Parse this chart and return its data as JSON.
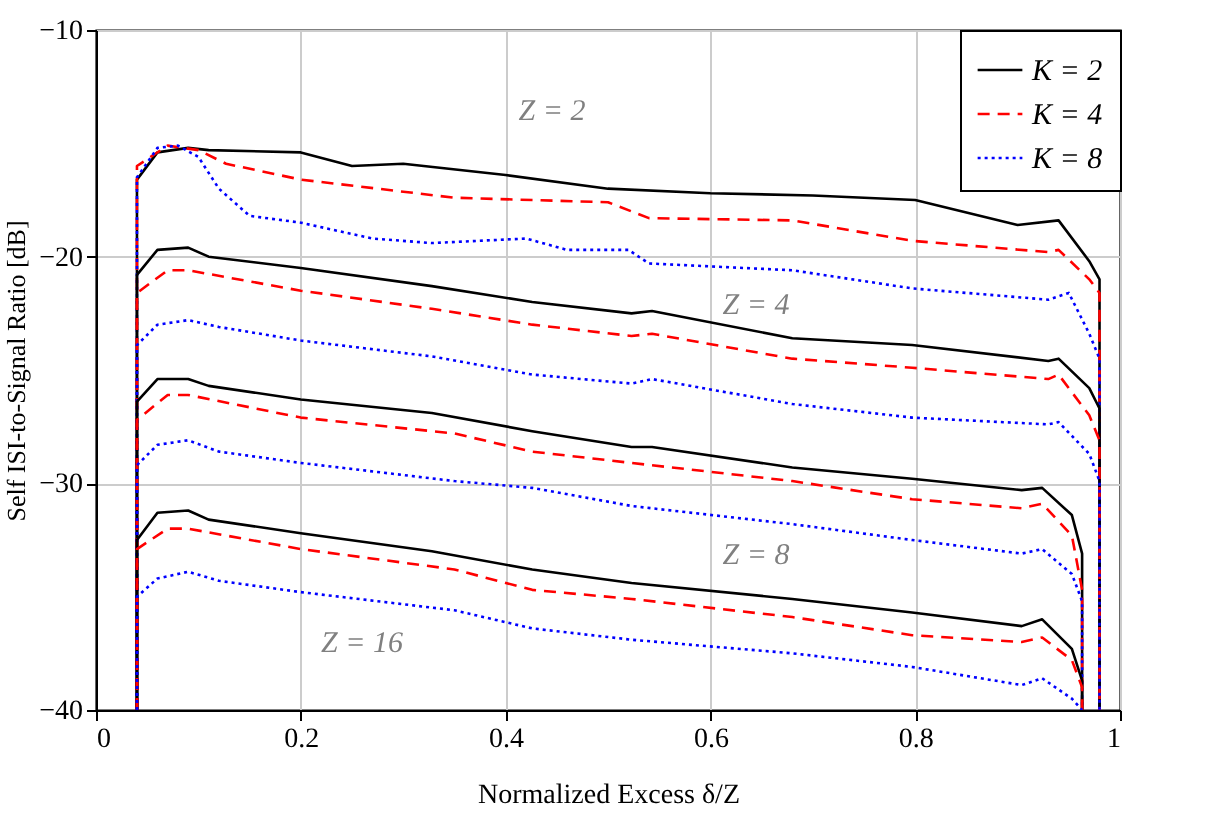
{
  "chart_data": {
    "type": "line",
    "xlabel": "Normalized Excess δ/Z",
    "ylabel": "Self ISI-to-Signal Ratio [dB]",
    "xlim": [
      0,
      1
    ],
    "ylim": [
      -40,
      -10
    ],
    "xticks": [
      0,
      0.2,
      0.4,
      0.6,
      0.8,
      1
    ],
    "yticks": [
      -40,
      -30,
      -20,
      -10
    ],
    "grid": true,
    "legend": "top right",
    "marker": "none",
    "series": [
      {
        "name": "K = 2",
        "color": "#000000",
        "line_style": "solid",
        "x": [
          0.04,
          0.04,
          0.06,
          0.09,
          0.11,
          0.2,
          0.25,
          0.3,
          0.4,
          0.5,
          0.6,
          0.7,
          0.8,
          0.9,
          0.94,
          0.97,
          0.98,
          0.98
        ],
        "values": [
          -40,
          -16.6,
          -15.4,
          -15.2,
          -15.3,
          -15.4,
          -16.0,
          -15.9,
          -16.4,
          -17.0,
          -17.2,
          -17.3,
          -17.5,
          -18.6,
          -18.4,
          -20.2,
          -21.0,
          -40
        ]
      },
      {
        "name": "K = 4",
        "color": "#ff0000",
        "line_style": "dashed",
        "x": [
          0.04,
          0.04,
          0.07,
          0.1,
          0.127,
          0.2,
          0.35,
          0.5,
          0.54,
          0.68,
          0.797,
          0.93,
          0.94,
          0.97,
          0.98,
          0.98
        ],
        "values": [
          -40,
          -16.0,
          -15.1,
          -15.3,
          -15.9,
          -16.6,
          -17.4,
          -17.6,
          -18.3,
          -18.4,
          -19.3,
          -19.8,
          -19.7,
          -21.0,
          -21.6,
          -40
        ]
      },
      {
        "name": "K = 8",
        "color": "#0000ff",
        "line_style": "dotted",
        "x": [
          0.04,
          0.04,
          0.06,
          0.08,
          0.1,
          0.12,
          0.15,
          0.2,
          0.27,
          0.328,
          0.42,
          0.46,
          0.52,
          0.54,
          0.68,
          0.797,
          0.93,
          0.95,
          0.97,
          0.98,
          0.98
        ],
        "values": [
          -40,
          -16.5,
          -15.2,
          -15.1,
          -15.6,
          -17.0,
          -18.2,
          -18.5,
          -19.2,
          -19.4,
          -19.2,
          -19.7,
          -19.7,
          -20.3,
          -20.6,
          -21.4,
          -21.9,
          -21.6,
          -23.4,
          -24.5,
          -40
        ]
      },
      {
        "color": "#000000",
        "line_style": "solid",
        "x": [
          0.04,
          0.04,
          0.06,
          0.09,
          0.11,
          0.2,
          0.328,
          0.426,
          0.523,
          0.543,
          0.68,
          0.797,
          0.93,
          0.94,
          0.97,
          0.98,
          0.98
        ],
        "values": [
          -40,
          -20.8,
          -19.7,
          -19.6,
          -20.0,
          -20.5,
          -21.3,
          -22.0,
          -22.5,
          -22.4,
          -23.6,
          -23.9,
          -24.6,
          -24.5,
          -25.8,
          -26.7,
          -40
        ]
      },
      {
        "color": "#ff0000",
        "line_style": "dashed",
        "x": [
          0.04,
          0.04,
          0.07,
          0.09,
          0.2,
          0.328,
          0.426,
          0.523,
          0.543,
          0.68,
          0.797,
          0.93,
          0.94,
          0.97,
          0.98,
          0.98
        ],
        "values": [
          -40,
          -21.6,
          -20.6,
          -20.6,
          -21.5,
          -22.3,
          -23.0,
          -23.5,
          -23.4,
          -24.5,
          -24.9,
          -25.4,
          -25.2,
          -27.0,
          -28.1,
          -40
        ]
      },
      {
        "color": "#0000ff",
        "line_style": "dotted",
        "x": [
          0.04,
          0.04,
          0.06,
          0.09,
          0.12,
          0.2,
          0.328,
          0.426,
          0.523,
          0.543,
          0.68,
          0.797,
          0.93,
          0.94,
          0.97,
          0.98,
          0.98
        ],
        "values": [
          -40,
          -23.9,
          -23.0,
          -22.8,
          -23.1,
          -23.7,
          -24.4,
          -25.2,
          -25.6,
          -25.4,
          -26.5,
          -27.1,
          -27.4,
          -27.3,
          -28.7,
          -29.9,
          -40
        ]
      },
      {
        "color": "#000000",
        "line_style": "solid",
        "x": [
          0.04,
          0.04,
          0.06,
          0.09,
          0.11,
          0.2,
          0.328,
          0.426,
          0.523,
          0.543,
          0.68,
          0.797,
          0.904,
          0.924,
          0.953,
          0.963,
          0.963
        ],
        "values": [
          -40,
          -26.4,
          -25.4,
          -25.4,
          -25.7,
          -26.3,
          -26.9,
          -27.7,
          -28.4,
          -28.4,
          -29.3,
          -29.8,
          -30.3,
          -30.2,
          -31.4,
          -33.1,
          -40
        ]
      },
      {
        "color": "#ff0000",
        "line_style": "dashed",
        "x": [
          0.04,
          0.04,
          0.07,
          0.09,
          0.2,
          0.35,
          0.426,
          0.523,
          0.68,
          0.797,
          0.904,
          0.924,
          0.953,
          0.963,
          0.963
        ],
        "values": [
          -40,
          -27.2,
          -26.1,
          -26.1,
          -27.1,
          -27.8,
          -28.6,
          -29.1,
          -29.9,
          -30.7,
          -31.1,
          -30.9,
          -32.3,
          -34.7,
          -40
        ]
      },
      {
        "color": "#0000ff",
        "line_style": "dotted",
        "x": [
          0.04,
          0.04,
          0.06,
          0.09,
          0.12,
          0.2,
          0.35,
          0.426,
          0.523,
          0.68,
          0.797,
          0.904,
          0.924,
          0.953,
          0.963,
          0.963
        ],
        "values": [
          -40,
          -29.2,
          -28.3,
          -28.1,
          -28.6,
          -29.1,
          -29.9,
          -30.2,
          -31.0,
          -31.8,
          -32.5,
          -33.1,
          -32.9,
          -34.0,
          -35.2,
          -40
        ]
      },
      {
        "color": "#000000",
        "line_style": "solid",
        "x": [
          0.04,
          0.04,
          0.06,
          0.09,
          0.11,
          0.2,
          0.328,
          0.426,
          0.523,
          0.68,
          0.797,
          0.904,
          0.924,
          0.953,
          0.963,
          0.963
        ],
        "values": [
          -40,
          -32.5,
          -31.3,
          -31.2,
          -31.6,
          -32.2,
          -33.0,
          -33.8,
          -34.4,
          -35.1,
          -35.7,
          -36.3,
          -36.0,
          -37.3,
          -38.7,
          -40
        ]
      },
      {
        "color": "#ff0000",
        "line_style": "dashed",
        "x": [
          0.04,
          0.04,
          0.07,
          0.09,
          0.2,
          0.35,
          0.426,
          0.523,
          0.68,
          0.797,
          0.904,
          0.924,
          0.953,
          0.963,
          0.963
        ],
        "values": [
          -40,
          -32.9,
          -32.0,
          -32.0,
          -32.9,
          -33.8,
          -34.7,
          -35.1,
          -35.9,
          -36.7,
          -37.0,
          -36.8,
          -37.8,
          -39.0,
          -40
        ]
      },
      {
        "color": "#0000ff",
        "line_style": "dotted",
        "x": [
          0.04,
          0.04,
          0.06,
          0.09,
          0.12,
          0.2,
          0.35,
          0.426,
          0.523,
          0.68,
          0.797,
          0.904,
          0.924,
          0.953,
          0.963
        ],
        "values": [
          -40,
          -35.0,
          -34.2,
          -33.9,
          -34.3,
          -34.8,
          -35.6,
          -36.4,
          -36.9,
          -37.5,
          -38.1,
          -38.9,
          -38.6,
          -39.5,
          -40
        ]
      }
    ],
    "annotations": [
      "Z = 2",
      "Z = 4",
      "Z = 8",
      "Z = 16"
    ]
  }
}
